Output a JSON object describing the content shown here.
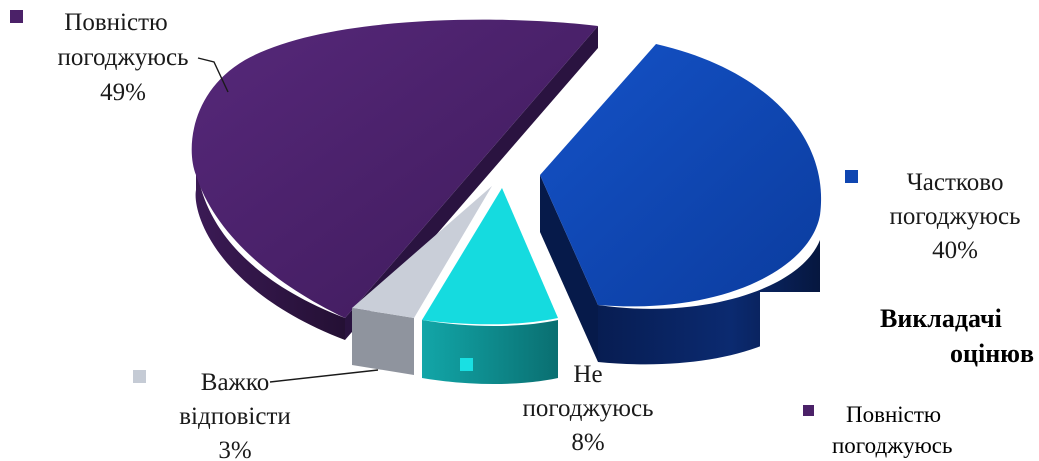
{
  "chart_data": {
    "type": "pie",
    "style": "3d-exploded",
    "title": "",
    "slices": [
      {
        "label_lines": [
          "Повністю",
          "погоджуюсь"
        ],
        "percent_text": "49%",
        "value": 49,
        "color": "#4a2169",
        "side": "#2e1542",
        "marker": "#4b2168"
      },
      {
        "label_lines": [
          "Частково",
          "погоджуюсь"
        ],
        "percent_text": "40%",
        "value": 40,
        "color": "#0e45b2",
        "side": "#0a255f",
        "marker": "#0f46b1"
      },
      {
        "label_lines": [
          "Не",
          "погоджуюсь"
        ],
        "percent_text": "8%",
        "value": 8,
        "color": "#12d8dc",
        "side": "#0f8d8f",
        "marker": "#19e0e3"
      },
      {
        "label_lines": [
          "Важко",
          "відповісти"
        ],
        "percent_text": "3%",
        "value": 3,
        "color": "#c7ccd6",
        "side": "#8e939d",
        "marker": "#c5cbd5"
      }
    ]
  },
  "overlap_text": {
    "line1": "Викладачі",
    "line2": "оцінюв",
    "legend_label": "Повністю",
    "legend_label2": "погоджуюсь"
  }
}
